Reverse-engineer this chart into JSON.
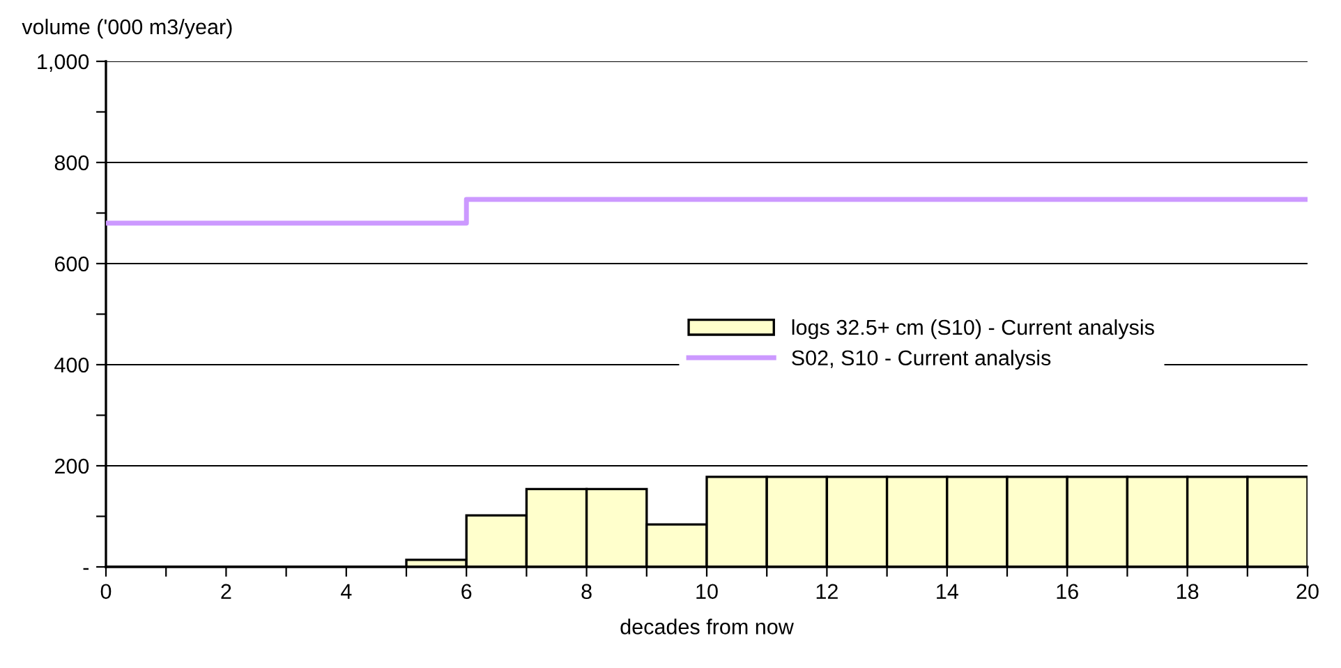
{
  "chart_data": {
    "type": "histogram",
    "ylabel": "volume ('000 m3/year)",
    "xlabel": "decades from now",
    "bins": [
      0,
      1,
      2,
      3,
      4,
      5,
      6,
      7,
      8,
      9,
      10,
      11,
      12,
      13,
      14,
      15,
      16,
      17,
      18,
      19,
      20
    ],
    "series": [
      {
        "name": "logs 32.5+ cm (S10) - Current analysis",
        "color": "#ffffcc",
        "values": [
          0,
          0,
          0,
          0,
          0,
          14,
          102,
          154,
          154,
          84,
          178,
          178,
          178,
          178,
          178,
          178,
          178,
          178,
          178,
          178
        ]
      },
      {
        "type": "step",
        "name": "S02, S10 - Current analysis",
        "color": "#cc99ff",
        "x": [
          0,
          6,
          20
        ],
        "values": [
          680,
          727,
          727
        ]
      }
    ],
    "xlim": [
      0,
      20
    ],
    "xticks": [
      0,
      {
        "value": 1,
        "label": null
      },
      2,
      {
        "value": 3,
        "label": null
      },
      4,
      {
        "value": 5,
        "label": null
      },
      6,
      {
        "value": 7,
        "label": null
      },
      8,
      {
        "value": 9,
        "label": null
      },
      10,
      {
        "value": 11,
        "label": null
      },
      12,
      {
        "value": 13,
        "label": null
      },
      14,
      {
        "value": 15,
        "label": null
      },
      16,
      {
        "value": 17,
        "label": null
      },
      18,
      {
        "value": 19,
        "label": null
      },
      20
    ],
    "ylim": [
      0,
      1000
    ],
    "yticks": [
      {
        "value": 0,
        "label": "-"
      },
      {
        "value": 100,
        "label": null
      },
      200,
      {
        "value": 300,
        "label": null
      },
      400,
      {
        "value": 500,
        "label": null
      },
      600,
      {
        "value": 700,
        "label": null
      },
      800,
      {
        "value": 900,
        "label": null
      },
      {
        "value": 1000,
        "label": "1,000"
      }
    ],
    "grid": "y",
    "legend": "center right"
  }
}
